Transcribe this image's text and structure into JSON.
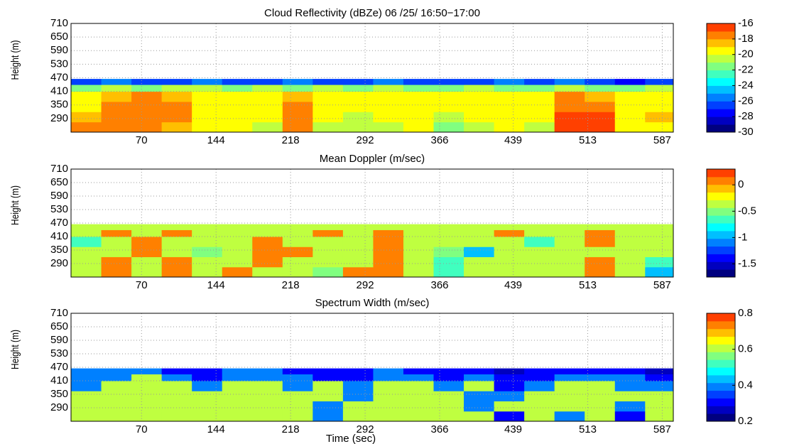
{
  "chart_data": [
    {
      "type": "contour",
      "title": "Cloud Reflectivity (dBZe) 06 /25/ 16:50−17:00",
      "ylabel": "Height (m)",
      "xlim": [
        0,
        598
      ],
      "xticks": [
        70,
        144,
        218,
        292,
        366,
        439,
        513,
        587
      ],
      "ylim": [
        230,
        710
      ],
      "yticks": [
        290,
        350,
        410,
        470,
        530,
        590,
        650,
        710
      ],
      "grid": true,
      "x_edges": [
        0,
        30,
        60,
        90,
        120,
        150,
        180,
        210,
        240,
        270,
        300,
        330,
        360,
        390,
        420,
        450,
        480,
        510,
        540,
        570,
        598
      ],
      "y_edges": [
        230,
        275,
        320,
        365,
        410,
        440,
        465
      ],
      "z": [
        [
          -18,
          -18,
          -18,
          -19,
          -20,
          -20,
          -21,
          -18,
          -21,
          -21,
          -21,
          -20,
          -22,
          -21,
          -20,
          -21,
          -17,
          -16.5,
          -20,
          -20
        ],
        [
          -19,
          -18,
          -18,
          -18,
          -20,
          -20,
          -20,
          -18,
          -20,
          -21,
          -20,
          -20,
          -21,
          -20,
          -20,
          -20,
          -17,
          -17,
          -20,
          -19
        ],
        [
          -20,
          -18,
          -18,
          -18,
          -20,
          -20,
          -20,
          -18,
          -20,
          -20,
          -20,
          -20,
          -20,
          -20,
          -20,
          -20,
          -18,
          -18,
          -20,
          -20
        ],
        [
          -20,
          -19,
          -18,
          -19,
          -20,
          -20,
          -20,
          -19,
          -20,
          -20,
          -20,
          -20,
          -20,
          -20,
          -20,
          -20,
          -18,
          -19,
          -20,
          -20
        ],
        [
          -22,
          -21,
          -22,
          -21,
          -21,
          -22,
          -21,
          -22,
          -21,
          -22,
          -21,
          -22,
          -22,
          -21,
          -22,
          -22,
          -21,
          -22,
          -22,
          -21
        ],
        [
          -27,
          -26,
          -27,
          -27,
          -26,
          -27,
          -27,
          -26,
          -27,
          -27,
          -26,
          -27,
          -27,
          -27,
          -26,
          -27,
          -26,
          -27,
          -28,
          -27
        ]
      ],
      "clim": [
        -30,
        -16
      ],
      "cticks": [
        -30,
        -28,
        -26,
        -24,
        -22,
        -20,
        -18,
        -16
      ],
      "colormap": [
        "#00007f",
        "#0000bf",
        "#0000ff",
        "#0040ff",
        "#0080ff",
        "#00bfff",
        "#00ffff",
        "#40ffbf",
        "#80ff80",
        "#bfff40",
        "#ffff00",
        "#ffbf00",
        "#ff8000",
        "#ff4000"
      ]
    },
    {
      "type": "contour",
      "title": "Mean Doppler (m/sec)",
      "ylabel": "Height (m)",
      "xlim": [
        0,
        598
      ],
      "xticks": [
        70,
        144,
        218,
        292,
        366,
        439,
        513,
        587
      ],
      "ylim": [
        230,
        710
      ],
      "yticks": [
        290,
        350,
        410,
        470,
        530,
        590,
        650,
        710
      ],
      "grid": true,
      "x_edges": [
        0,
        30,
        60,
        90,
        120,
        150,
        180,
        210,
        240,
        270,
        300,
        330,
        360,
        390,
        420,
        450,
        480,
        510,
        540,
        570,
        598
      ],
      "y_edges": [
        230,
        275,
        320,
        365,
        410,
        440,
        465
      ],
      "z": [
        [
          -0.3,
          0.05,
          -0.3,
          0.05,
          -0.4,
          0.05,
          -0.3,
          -0.3,
          -0.5,
          0.05,
          0.05,
          -0.3,
          -0.7,
          -0.4,
          -0.3,
          -0.3,
          -0.3,
          0.05,
          -0.4,
          -0.9
        ],
        [
          -0.4,
          0.05,
          -0.3,
          0.05,
          -0.3,
          -0.3,
          0.05,
          -0.4,
          -0.3,
          -0.3,
          0.1,
          -0.3,
          -0.6,
          -0.3,
          -0.3,
          -0.4,
          -0.3,
          0.05,
          -0.3,
          -0.6
        ],
        [
          -0.3,
          -0.3,
          0.05,
          -0.3,
          -0.5,
          -0.3,
          0.05,
          0.05,
          -0.3,
          -0.3,
          0.1,
          -0.4,
          -0.5,
          -1.0,
          -0.3,
          -0.3,
          -0.4,
          -0.3,
          -0.4,
          -0.3
        ],
        [
          -0.6,
          -0.3,
          0.05,
          -0.3,
          -0.3,
          -0.3,
          0.05,
          -0.3,
          -0.3,
          -0.4,
          0.05,
          -0.3,
          -0.3,
          -0.4,
          -0.3,
          -0.6,
          -0.3,
          0.05,
          -0.3,
          -0.3
        ],
        [
          -0.3,
          0.05,
          -0.3,
          0.05,
          -0.3,
          -0.4,
          -0.3,
          -0.3,
          0.05,
          -0.3,
          0.05,
          -0.3,
          -0.3,
          -0.3,
          0.05,
          -0.3,
          -0.3,
          0.05,
          -0.3,
          -0.3
        ],
        [
          -0.3,
          -0.3,
          -0.3,
          -0.3,
          -0.3,
          -0.3,
          -0.3,
          -0.3,
          -0.3,
          -0.3,
          -0.3,
          -0.3,
          -0.3,
          -0.3,
          -0.3,
          -0.3,
          -0.3,
          -0.3,
          -0.3,
          -0.3
        ]
      ],
      "clim": [
        -1.75,
        0.3
      ],
      "cticks": [
        -1.5,
        -1,
        -0.5,
        0
      ],
      "colormap": [
        "#00007f",
        "#0000bf",
        "#0000ff",
        "#0040ff",
        "#0080ff",
        "#00bfff",
        "#00ffff",
        "#40ffbf",
        "#80ff80",
        "#bfff40",
        "#ffff00",
        "#ffbf00",
        "#ff8000",
        "#ff4000"
      ]
    },
    {
      "type": "contour",
      "title": "Spectrum Width (m/sec)",
      "ylabel": "Height (m)",
      "xlabel": "Time (sec)",
      "xlim": [
        0,
        598
      ],
      "xticks": [
        70,
        144,
        218,
        292,
        366,
        439,
        513,
        587
      ],
      "ylim": [
        230,
        710
      ],
      "yticks": [
        290,
        350,
        410,
        470,
        530,
        590,
        650,
        710
      ],
      "grid": true,
      "x_edges": [
        0,
        30,
        60,
        90,
        120,
        150,
        180,
        210,
        240,
        270,
        300,
        330,
        360,
        390,
        420,
        450,
        480,
        510,
        540,
        570,
        598
      ],
      "y_edges": [
        230,
        275,
        320,
        365,
        410,
        440,
        465
      ],
      "z": [
        [
          0.6,
          0.6,
          0.6,
          0.6,
          0.6,
          0.6,
          0.6,
          0.6,
          0.4,
          0.6,
          0.6,
          0.6,
          0.6,
          0.6,
          0.3,
          0.6,
          0.4,
          0.6,
          0.3,
          0.6
        ],
        [
          0.6,
          0.6,
          0.6,
          0.6,
          0.6,
          0.6,
          0.6,
          0.6,
          0.4,
          0.6,
          0.6,
          0.6,
          0.6,
          0.4,
          0.6,
          0.6,
          0.6,
          0.6,
          0.4,
          0.6
        ],
        [
          0.6,
          0.6,
          0.6,
          0.6,
          0.6,
          0.6,
          0.6,
          0.6,
          0.6,
          0.4,
          0.6,
          0.6,
          0.6,
          0.4,
          0.4,
          0.6,
          0.6,
          0.6,
          0.6,
          0.6
        ],
        [
          0.4,
          0.6,
          0.6,
          0.6,
          0.4,
          0.6,
          0.6,
          0.4,
          0.6,
          0.4,
          0.6,
          0.6,
          0.4,
          0.6,
          0.3,
          0.4,
          0.6,
          0.6,
          0.4,
          0.4
        ],
        [
          0.4,
          0.4,
          0.6,
          0.4,
          0.3,
          0.4,
          0.4,
          0.4,
          0.3,
          0.3,
          0.4,
          0.4,
          0.3,
          0.4,
          0.3,
          0.3,
          0.4,
          0.4,
          0.4,
          0.3
        ],
        [
          0.4,
          0.4,
          0.4,
          0.3,
          0.3,
          0.4,
          0.4,
          0.3,
          0.3,
          0.3,
          0.4,
          0.3,
          0.3,
          0.3,
          0.25,
          0.3,
          0.3,
          0.3,
          0.3,
          0.25
        ]
      ],
      "clim": [
        0.2,
        0.8
      ],
      "cticks": [
        0.2,
        0.4,
        0.6,
        0.8
      ],
      "colormap": [
        "#00007f",
        "#0000bf",
        "#0000ff",
        "#0040ff",
        "#0080ff",
        "#00bfff",
        "#00ffff",
        "#40ffbf",
        "#80ff80",
        "#bfff40",
        "#ffff00",
        "#ffbf00",
        "#ff8000",
        "#ff4000"
      ]
    }
  ]
}
